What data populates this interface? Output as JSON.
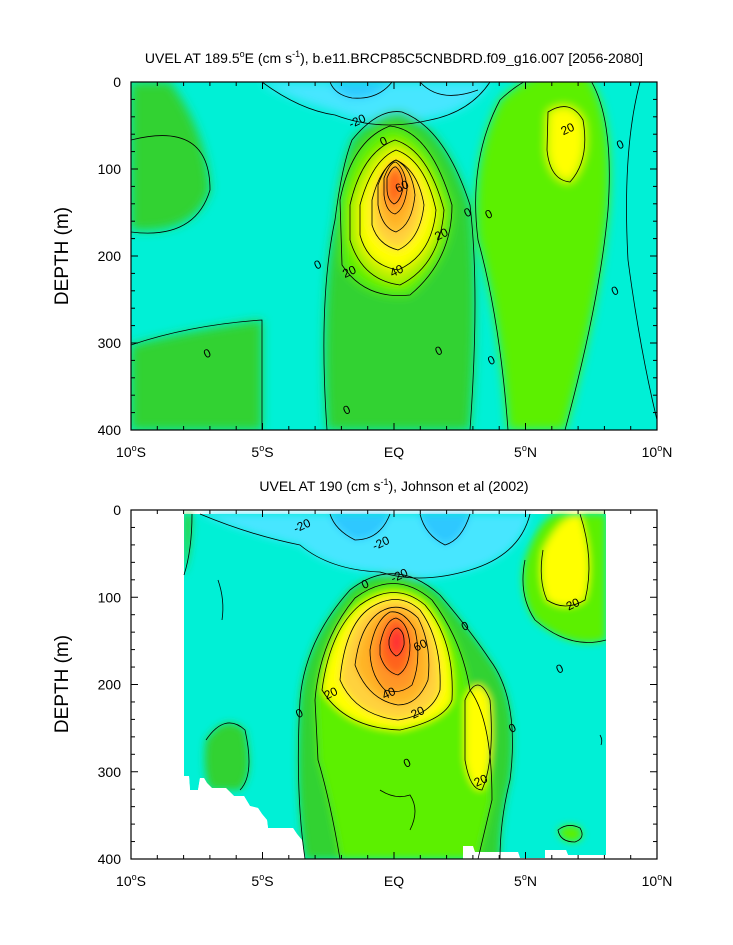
{
  "chart_data": [
    {
      "type": "heatmap",
      "subtype": "filled-contour",
      "title_pre": "UVEL AT 189.5",
      "title_deg": "o",
      "title_mid": "E (cm s",
      "title_exp": "-1",
      "title_post": "), b.e11.BRCP85C5CNBDRD.f09_g16.007 [2056-2080]",
      "xlabel": "",
      "ylabel": "DEPTH (m)",
      "xlim": [
        -10,
        10
      ],
      "ylim": [
        0,
        400
      ],
      "y_inverted": true,
      "x_ticks": [
        {
          "value": -10,
          "num": "10",
          "deg": "o",
          "hemi": "S"
        },
        {
          "value": -5,
          "num": "5",
          "deg": "o",
          "hemi": "S"
        },
        {
          "value": 0,
          "num": "EQ",
          "deg": "",
          "hemi": ""
        },
        {
          "value": 5,
          "num": "5",
          "deg": "o",
          "hemi": "N"
        },
        {
          "value": 10,
          "num": "10",
          "deg": "o",
          "hemi": "N"
        }
      ],
      "y_ticks": [
        0,
        100,
        200,
        300,
        400
      ],
      "contour_interval": 10,
      "color_levels": [
        {
          "range": "-30 to -20",
          "color": "#2dc8ff"
        },
        {
          "range": "-20 to -10",
          "color": "#47e6ff"
        },
        {
          "range": "-10 to 0",
          "color": "#00f0d6"
        },
        {
          "range": "0 to 10",
          "color": "#32d232"
        },
        {
          "range": "10 to 20",
          "color": "#5cf000"
        },
        {
          "range": "20 to 30",
          "color": "#bbf000"
        },
        {
          "range": "30 to 40",
          "color": "#ffff00"
        },
        {
          "range": "40 to 50",
          "color": "#ffd23c"
        },
        {
          "range": "50 to 60",
          "color": "#ffb428"
        },
        {
          "range": "60 to 70",
          "color": "#ff9628"
        },
        {
          "range": "70 to 80",
          "color": "#ff641e"
        },
        {
          "range": "80 to 90",
          "color": "#ff3232"
        }
      ],
      "jets": [
        {
          "name": "Equatorial Undercurrent",
          "lon": 0,
          "depth": 140,
          "peak": 80
        },
        {
          "name": "North subsurface jet",
          "lon": 6.3,
          "depth": 70,
          "peak": 30
        }
      ],
      "contour_labels": [
        {
          "text": "-20",
          "lon": -1.4,
          "depth": 45
        },
        {
          "text": "0",
          "lon": -0.4,
          "depth": 68
        },
        {
          "text": "20",
          "lon": 6.6,
          "depth": 54
        },
        {
          "text": "0",
          "lon": 8.6,
          "depth": 72
        },
        {
          "text": "60",
          "lon": 0.3,
          "depth": 120
        },
        {
          "text": "0",
          "lon": 2.8,
          "depth": 150
        },
        {
          "text": "0",
          "lon": 3.6,
          "depth": 152
        },
        {
          "text": "20",
          "lon": 1.8,
          "depth": 175
        },
        {
          "text": "0",
          "lon": -2.9,
          "depth": 210
        },
        {
          "text": "20",
          "lon": -1.7,
          "depth": 218
        },
        {
          "text": "40",
          "lon": 0.1,
          "depth": 217
        },
        {
          "text": "0",
          "lon": 8.4,
          "depth": 240
        },
        {
          "text": "0",
          "lon": -7.1,
          "depth": 312
        },
        {
          "text": "0",
          "lon": 1.7,
          "depth": 309
        },
        {
          "text": "0",
          "lon": 3.7,
          "depth": 320
        },
        {
          "text": "0",
          "lon": -1.8,
          "depth": 377
        }
      ]
    },
    {
      "type": "heatmap",
      "subtype": "filled-contour",
      "title_pre": "UVEL AT 190 (cm s",
      "title_exp": "-1",
      "title_post": "), Johnson et al (2002)",
      "xlabel": "",
      "ylabel": "DEPTH (m)",
      "xlim": [
        -10,
        10
      ],
      "ylim": [
        0,
        400
      ],
      "y_inverted": true,
      "data_lon_range": [
        -8,
        8
      ],
      "x_ticks": [
        {
          "value": -10,
          "num": "10",
          "deg": "o",
          "hemi": "S"
        },
        {
          "value": -5,
          "num": "5",
          "deg": "o",
          "hemi": "S"
        },
        {
          "value": 0,
          "num": "EQ",
          "deg": "",
          "hemi": ""
        },
        {
          "value": 5,
          "num": "5",
          "deg": "o",
          "hemi": "N"
        },
        {
          "value": 10,
          "num": "10",
          "deg": "o",
          "hemi": "N"
        }
      ],
      "y_ticks": [
        0,
        100,
        200,
        300,
        400
      ],
      "contour_interval": 10,
      "jets": [
        {
          "name": "Equatorial Undercurrent",
          "lon": 0,
          "depth": 150,
          "peak": 90
        },
        {
          "name": "North subsurface jet",
          "lon": 6.4,
          "depth": 70,
          "peak": 30
        },
        {
          "name": "Tsuchiya jet N",
          "lon": 3.2,
          "depth": 250,
          "peak": 30
        }
      ],
      "contour_labels": [
        {
          "text": "-20",
          "lon": -3.5,
          "depth": 18
        },
        {
          "text": "-20",
          "lon": -0.5,
          "depth": 38
        },
        {
          "text": "0",
          "lon": -1.1,
          "depth": 85
        },
        {
          "text": "-20",
          "lon": 0.2,
          "depth": 75
        },
        {
          "text": "20",
          "lon": 6.8,
          "depth": 108
        },
        {
          "text": "0",
          "lon": 2.7,
          "depth": 133
        },
        {
          "text": "60",
          "lon": 1.0,
          "depth": 155
        },
        {
          "text": "0",
          "lon": 6.3,
          "depth": 182
        },
        {
          "text": "20",
          "lon": -2.4,
          "depth": 210
        },
        {
          "text": "40",
          "lon": -0.2,
          "depth": 210
        },
        {
          "text": "20",
          "lon": 0.9,
          "depth": 232
        },
        {
          "text": "0",
          "lon": -3.6,
          "depth": 233
        },
        {
          "text": "0",
          "lon": 4.5,
          "depth": 250
        },
        {
          "text": "0",
          "lon": 0.5,
          "depth": 290
        },
        {
          "text": "20",
          "lon": 3.3,
          "depth": 310
        }
      ]
    }
  ]
}
